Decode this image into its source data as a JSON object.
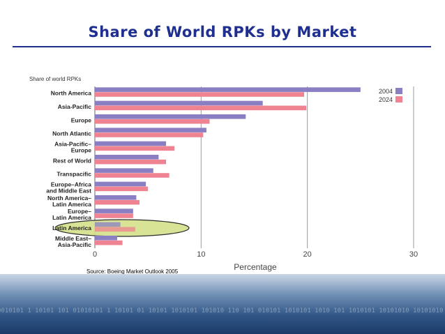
{
  "slide": {
    "title": "Share of World RPKs by Market",
    "source": "Source: Boeing Market Outlook 2005",
    "footer_binary": "0010101 1 10101 101 01010101 1 10101 01 10101 1010101 101010 110 101 010101 1010101 1010 101 1010101 10101010 10101010 1 10101 10101"
  },
  "colors": {
    "title": "#1f2f8f",
    "series_2004": "#8b7fc4",
    "series_2024": "#ef8391",
    "highlight": "#d4e08a"
  },
  "chart_data": {
    "type": "bar",
    "orientation": "horizontal",
    "title": "Share of world RPKs",
    "xlabel": "Percentage",
    "ylabel": "",
    "xlim": [
      0,
      30
    ],
    "xticks": [
      "0",
      "10",
      "20",
      "30"
    ],
    "grid": true,
    "legend": "top-right",
    "categories": [
      "North America",
      "Asia-Pacific",
      "Europe",
      "North Atlantic",
      "Asia-Pacific–Europe",
      "Rest of World",
      "Transpacific",
      "Europe–Africa and Middle East",
      "North America–Latin America",
      "Europe–Latin America",
      "Latin America",
      "Middle East–Asia-Pacific"
    ],
    "category_lines": [
      [
        "North America"
      ],
      [
        "Asia-Pacific"
      ],
      [
        "Europe"
      ],
      [
        "North Atlantic"
      ],
      [
        "Asia-Pacific–",
        "Europe"
      ],
      [
        "Rest of World"
      ],
      [
        "Transpacific"
      ],
      [
        "Europe–Africa",
        "and Middle East"
      ],
      [
        "North America–",
        "Latin America"
      ],
      [
        "Europe–",
        "Latin America"
      ],
      [
        "Latin America"
      ],
      [
        "Middle East–",
        "Asia-Pacific"
      ]
    ],
    "series": [
      {
        "name": "2004",
        "values": [
          25.0,
          15.8,
          14.2,
          10.5,
          6.7,
          6.0,
          5.5,
          4.8,
          3.9,
          3.6,
          2.4,
          2.1
        ]
      },
      {
        "name": "2024",
        "values": [
          19.7,
          19.9,
          10.8,
          10.2,
          7.5,
          6.7,
          7.0,
          5.0,
          4.2,
          3.6,
          3.8,
          2.6
        ]
      }
    ],
    "highlighted_category": "Latin America"
  }
}
